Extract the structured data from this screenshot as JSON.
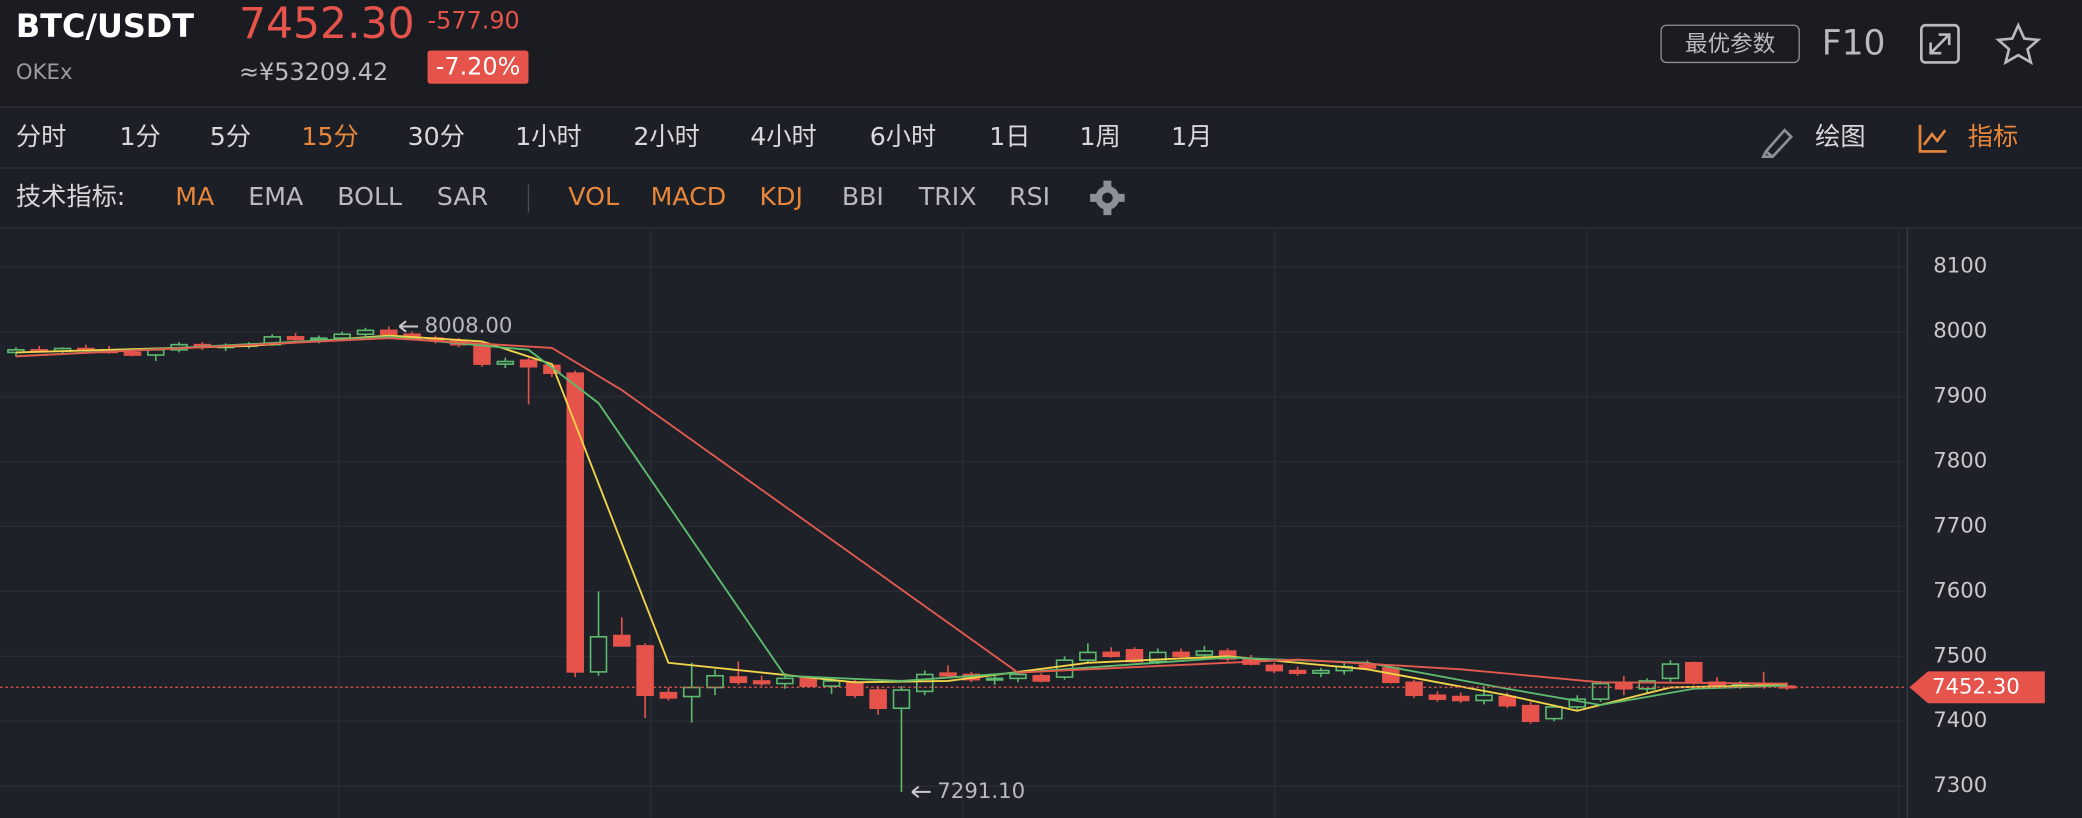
{
  "header": {
    "symbol": "BTC/USDT",
    "exchange": "OKEx",
    "price": "7452.30",
    "price_cny": "≈¥53209.42",
    "change": "-577.90",
    "change_pct": "-7.20%",
    "param_button": "最优参数",
    "f10": "F10"
  },
  "timeframes": {
    "items": [
      "分时",
      "1分",
      "5分",
      "15分",
      "30分",
      "1小时",
      "2小时",
      "4小时",
      "6小时",
      "1日",
      "1周",
      "1月"
    ],
    "active": 3,
    "draw": "绘图",
    "indicator": "指标"
  },
  "indicators": {
    "label": "技术指标:",
    "main": [
      {
        "name": "MA",
        "active": true
      },
      {
        "name": "EMA",
        "active": false
      },
      {
        "name": "BOLL",
        "active": false
      },
      {
        "name": "SAR",
        "active": false
      }
    ],
    "sub": [
      {
        "name": "VOL",
        "active": true
      },
      {
        "name": "MACD",
        "active": true
      },
      {
        "name": "KDJ",
        "active": true
      },
      {
        "name": "BBI",
        "active": false
      },
      {
        "name": "TRIX",
        "active": false
      },
      {
        "name": "RSI",
        "active": false
      }
    ]
  },
  "chart_data": {
    "type": "candlestick",
    "up_color": "#5dbb6e",
    "down_color": "#e5534b",
    "open": [
      7968,
      7972,
      7970,
      7974,
      7972,
      7968,
      7964,
      7972,
      7980,
      7976,
      7978,
      7980,
      7992,
      7988,
      7990,
      7996,
      8002,
      7996,
      7990,
      7986,
      7980,
      7950,
      7956,
      7948,
      7936,
      7476,
      7532,
      7516,
      7444,
      7438,
      7452,
      7468,
      7462,
      7458,
      7466,
      7454,
      7460,
      7448,
      7420,
      7446,
      7474,
      7472,
      7464,
      7466,
      7470,
      7468,
      7494,
      7506,
      7510,
      7492,
      7506,
      7502,
      7508,
      7496,
      7486,
      7478,
      7474,
      7478,
      7486,
      7482,
      7460,
      7440,
      7438,
      7432,
      7438,
      7424,
      7404,
      7422,
      7434,
      7458,
      7450,
      7466,
      7490,
      7460,
      7456,
      7458,
      7454
    ],
    "high": [
      7976,
      7978,
      7976,
      7980,
      7978,
      7974,
      7975,
      7984,
      7984,
      7982,
      7984,
      7996,
      7998,
      7994,
      8000,
      8006,
      8008,
      8000,
      7994,
      7990,
      7984,
      7960,
      7960,
      7952,
      7940,
      7600,
      7560,
      7520,
      7452,
      7490,
      7480,
      7492,
      7470,
      7474,
      7470,
      7466,
      7464,
      7454,
      7454,
      7478,
      7486,
      7476,
      7472,
      7476,
      7474,
      7500,
      7520,
      7514,
      7514,
      7512,
      7512,
      7516,
      7512,
      7502,
      7490,
      7484,
      7482,
      7490,
      7494,
      7486,
      7464,
      7446,
      7444,
      7454,
      7444,
      7430,
      7426,
      7440,
      7462,
      7470,
      7466,
      7494,
      7492,
      7468,
      7462,
      7476,
      7460
    ],
    "low": [
      7962,
      7968,
      7966,
      7970,
      7966,
      7962,
      7955,
      7968,
      7972,
      7970,
      7974,
      7978,
      7984,
      7982,
      7986,
      7990,
      7994,
      7988,
      7982,
      7976,
      7946,
      7944,
      7888,
      7930,
      7468,
      7470,
      7515,
      7405,
      7432,
      7398,
      7440,
      7456,
      7454,
      7450,
      7452,
      7442,
      7436,
      7410,
      7291.1,
      7440,
      7466,
      7460,
      7456,
      7460,
      7460,
      7464,
      7490,
      7498,
      7490,
      7488,
      7496,
      7496,
      7492,
      7486,
      7474,
      7470,
      7468,
      7472,
      7478,
      7458,
      7436,
      7430,
      7428,
      7426,
      7420,
      7396,
      7400,
      7418,
      7430,
      7440,
      7444,
      7460,
      7456,
      7452,
      7450,
      7450,
      7448
    ],
    "close": [
      7972,
      7970,
      7974,
      7972,
      7968,
      7964,
      7972,
      7980,
      7976,
      7978,
      7980,
      7992,
      7988,
      7990,
      7996,
      8002,
      7996,
      7990,
      7986,
      7980,
      7950,
      7954,
      7946,
      7936,
      7476,
      7530,
      7516,
      7440,
      7436,
      7452,
      7470,
      7460,
      7458,
      7466,
      7454,
      7462,
      7440,
      7420,
      7448,
      7472,
      7470,
      7464,
      7466,
      7472,
      7462,
      7494,
      7506,
      7500,
      7492,
      7506,
      7500,
      7508,
      7496,
      7488,
      7478,
      7474,
      7478,
      7484,
      7482,
      7460,
      7440,
      7434,
      7432,
      7440,
      7424,
      7400,
      7422,
      7434,
      7458,
      7450,
      7462,
      7488,
      7460,
      7456,
      7458,
      7454,
      7452.3
    ],
    "lines": [
      {
        "color": "#f2d34a",
        "x": [
          0,
          10,
          16,
          20,
          23,
          28,
          36,
          40,
          46,
          52,
          58,
          64,
          67,
          71,
          76
        ],
        "values": [
          7968,
          7978,
          7994,
          7985,
          7950,
          7490,
          7460,
          7462,
          7490,
          7500,
          7480,
          7440,
          7416,
          7452,
          7456
        ]
      },
      {
        "color": "#5dbb6e",
        "x": [
          0,
          16,
          22,
          25,
          33,
          38,
          45,
          52,
          58,
          64,
          68,
          72,
          76
        ],
        "values": [
          7962,
          7992,
          7972,
          7890,
          7470,
          7462,
          7480,
          7498,
          7490,
          7450,
          7425,
          7450,
          7455
        ]
      },
      {
        "color": "#e55a4f",
        "x": [
          0,
          16,
          23,
          26,
          43,
          55,
          62,
          68,
          76
        ],
        "values": [
          7962,
          7990,
          7975,
          7910,
          7475,
          7495,
          7480,
          7460,
          7458
        ]
      }
    ],
    "annotations": [
      {
        "value": 8008,
        "label": "8008.00"
      },
      {
        "value": 7291.1,
        "label": "7291.10"
      }
    ],
    "last": {
      "value": 7452.3,
      "label": "7452.30"
    },
    "ylim": [
      7251,
      8159
    ],
    "yticks": [
      7300,
      7400,
      7500,
      7600,
      7700,
      7800,
      7900,
      8000,
      8100
    ],
    "grid": true
  }
}
